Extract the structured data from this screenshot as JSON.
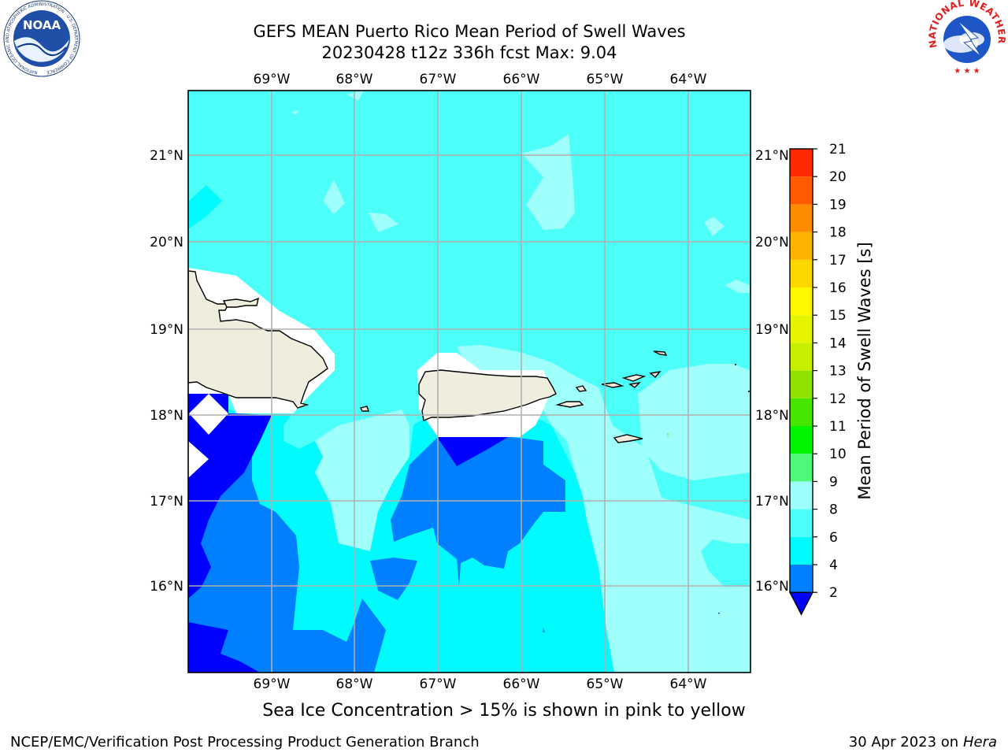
{
  "title": {
    "line1": "GEFS MEAN Puerto Rico Mean Period of Swell Waves",
    "line2": "20230428 t12z 336h fcst   Max: 9.04"
  },
  "map": {
    "lon_labels": [
      "69°W",
      "68°W",
      "67°W",
      "66°W",
      "65°W",
      "64°W"
    ],
    "lat_labels": [
      "21°N",
      "20°N",
      "19°N",
      "18°N",
      "17°N",
      "16°N"
    ],
    "lon_values": [
      -69,
      -68,
      -67,
      -66,
      -65,
      -64
    ],
    "lat_values": [
      21,
      20,
      19,
      18,
      17,
      16
    ],
    "lon_range": [
      -70.0,
      -63.25
    ],
    "lat_range": [
      15.0,
      21.75
    ],
    "colors": {
      "ocean_main": "#4dfff9",
      "ocean_light": "#9ffffa",
      "ocean_cyan": "#00fbfe",
      "ocean_blue": "#0080ff",
      "ocean_dark": "#0000ff",
      "land": "#eeedde",
      "gridline": "#b0b0b0"
    }
  },
  "colorbar": {
    "label": "Mean Period of Swell Waves [s]",
    "ticks": [
      "2",
      "4",
      "6",
      "8",
      "9",
      "10",
      "11",
      "12",
      "13",
      "14",
      "15",
      "16",
      "17",
      "18",
      "19",
      "20",
      "21"
    ],
    "levels": [
      2,
      4,
      6,
      8,
      9,
      10,
      11,
      12,
      13,
      14,
      15,
      16,
      17,
      18,
      19,
      20,
      21
    ],
    "colors": [
      "#0080ff",
      "#00fbfe",
      "#4dfff9",
      "#9ffffa",
      "#4ef97a",
      "#00f300",
      "#46e600",
      "#8fe200",
      "#c6f000",
      "#e5f500",
      "#fff700",
      "#ffd700",
      "#ffb200",
      "#ff8c00",
      "#ff5a00",
      "#ff2a00"
    ],
    "under_color": "#0000ff"
  },
  "note": "Sea Ice Concentration > 15% is shown in pink to yellow",
  "footer": {
    "left": "NCEP/EMC/Verification Post Processing Product Generation Branch",
    "right_date": "30 Apr 2023 on ",
    "right_host": "Hera"
  },
  "logos": {
    "noaa_text": "NOAA",
    "noaa_ring": "NATIONAL OCEANIC AND ATMOSPHERIC ADMINISTRATION · U.S. DEPARTMENT OF COMMERCE",
    "nws_ring": "NATIONAL WEATHER SERVICE"
  }
}
